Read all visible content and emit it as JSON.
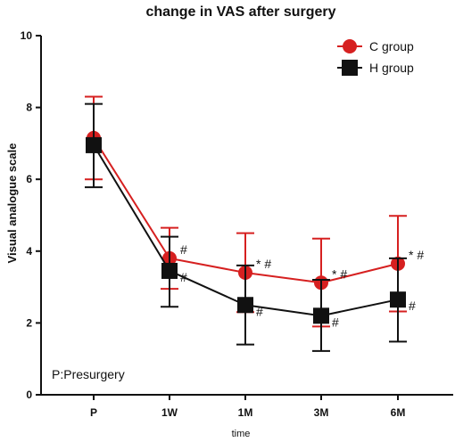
{
  "chart_data": {
    "type": "line",
    "title": "change in VAS after surgery",
    "xlabel": "time",
    "ylabel": "Visual analogue scale",
    "categories": [
      "P",
      "1W",
      "1M",
      "3M",
      "6M"
    ],
    "ylim": [
      0,
      10
    ],
    "yticks": [
      0,
      2,
      4,
      6,
      8,
      10
    ],
    "grid": false,
    "legend_position": "top-right",
    "note": "P:Presurgery",
    "series": [
      {
        "name": "C group",
        "color": "#d62020",
        "marker": "circle",
        "values": [
          7.15,
          3.8,
          3.4,
          3.12,
          3.65
        ],
        "error_upper": [
          8.3,
          4.65,
          4.5,
          4.35,
          4.98
        ],
        "error_lower": [
          6.0,
          2.95,
          2.3,
          1.9,
          2.32
        ],
        "annotations": [
          "",
          "#",
          "* #",
          "* #",
          "* #"
        ]
      },
      {
        "name": "H group",
        "color": "#111111",
        "marker": "square",
        "values": [
          6.95,
          3.45,
          2.5,
          2.2,
          2.65
        ],
        "error_upper": [
          8.1,
          4.4,
          3.6,
          3.2,
          3.8
        ],
        "error_lower": [
          5.78,
          2.45,
          1.4,
          1.22,
          1.48
        ],
        "annotations": [
          "",
          "#",
          "#",
          "#",
          "#"
        ]
      }
    ]
  }
}
